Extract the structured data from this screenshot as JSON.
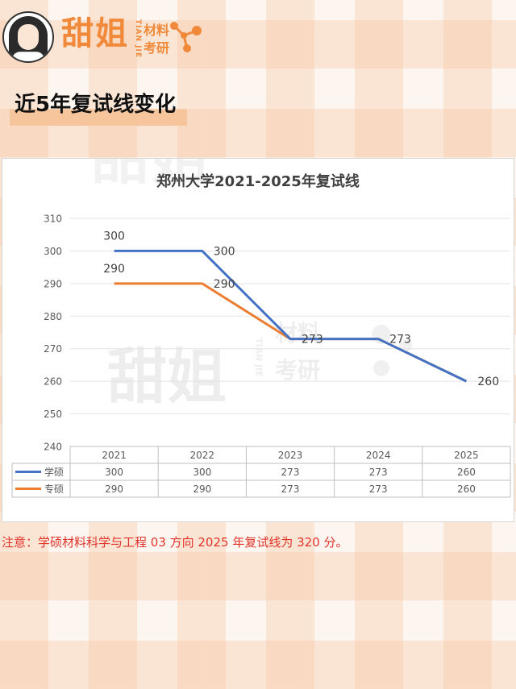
{
  "header": {
    "logo_main": "甜姐",
    "logo_pinyin": "TIAN JIE",
    "logo_sub1": "材料",
    "logo_sub2": "考研"
  },
  "section_title": "近5年复试线变化",
  "note": "注意：学硕材料科学与工程 03 方向 2025 年复试线为 320 分。",
  "colors": {
    "brand_orange": "#f08a3a",
    "series_blue": "#4472c4",
    "series_orange": "#ed7d31",
    "note_red": "#e0342b"
  },
  "chart_data": {
    "type": "line",
    "title": "郑州大学2021-2025年复试线",
    "categories": [
      "2021",
      "2022",
      "2023",
      "2024",
      "2025"
    ],
    "series": [
      {
        "name": "学硕",
        "values": [
          300,
          300,
          273,
          273,
          260
        ],
        "color": "#4472c4"
      },
      {
        "name": "专硕",
        "values": [
          290,
          290,
          273,
          273,
          260
        ],
        "color": "#ed7d31"
      }
    ],
    "ylim": [
      240,
      310
    ],
    "yticks": [
      "310",
      "300",
      "290",
      "280",
      "270",
      "260",
      "250",
      "240"
    ],
    "grid": true,
    "legend": "data-table-below",
    "labels": {
      "s0": [
        "300",
        "300",
        "273",
        "",
        ""
      ],
      "s1": [
        "290",
        "290",
        "",
        "273",
        "260"
      ]
    },
    "watermark": {
      "main": "甜姐",
      "pinyin": "TIAN JIE",
      "sub1": "材料",
      "sub2": "考研"
    }
  }
}
